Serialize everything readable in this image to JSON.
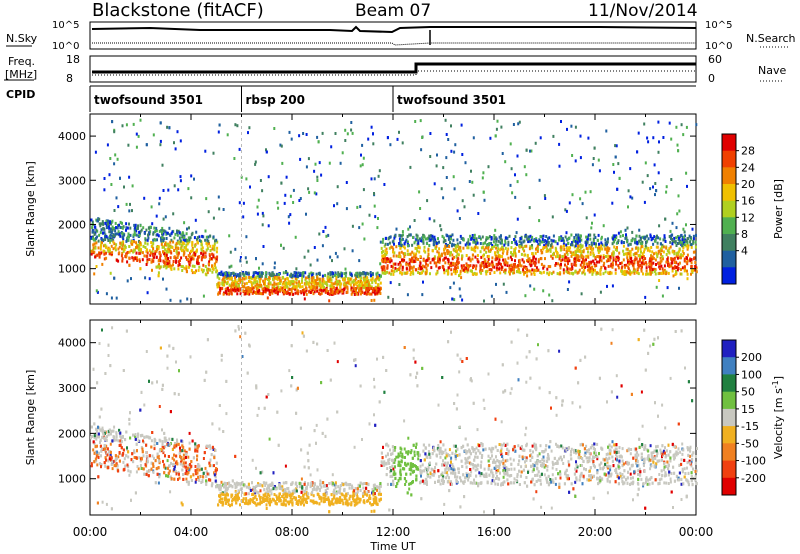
{
  "header": {
    "station": "Blackstone (fitACF)",
    "beam": "Beam 07",
    "date": "11/Nov/2014"
  },
  "panels": {
    "nsky_label": "N.Sky",
    "nsearch_label": "N.Search",
    "freq_label_line1": "Freq.",
    "freq_label_line2": "[MHz]",
    "nave_label": "Nave",
    "cpid_label": "CPID",
    "noise_ticks": [
      "10^5",
      "10^0"
    ],
    "freq_ticks": [
      "18",
      "8"
    ],
    "nave_ticks": [
      "60",
      "0"
    ]
  },
  "cpid_segments": [
    {
      "label": "twofsound 3501",
      "start_h": 0
    },
    {
      "label": "rbsp 200",
      "start_h": 6
    },
    {
      "label": "twofsound 3501",
      "start_h": 12
    }
  ],
  "chart_data": [
    {
      "type": "heatmap",
      "title": "",
      "xlabel": "Time UT",
      "ylabel": "Slant Range [km]",
      "x_ticks": [
        "00:00",
        "04:00",
        "08:00",
        "12:00",
        "16:00",
        "20:00",
        "00:00"
      ],
      "xlim_hours": [
        0,
        24
      ],
      "ylim": [
        200,
        4500
      ],
      "y_ticks": [
        1000,
        2000,
        3000,
        4000
      ],
      "colorbar": {
        "label": "Power [dB]",
        "ticks": [
          "28",
          "24",
          "20",
          "16",
          "12",
          "8",
          "4"
        ],
        "colors": [
          "#e00000",
          "#f04000",
          "#f08000",
          "#f0c000",
          "#b0d020",
          "#50b050",
          "#408060",
          "#2060a0",
          "#0020e0"
        ]
      }
    },
    {
      "type": "heatmap",
      "title": "",
      "xlabel": "Time UT",
      "ylabel": "Slant Range [km]",
      "x_ticks": [
        "00:00",
        "04:00",
        "08:00",
        "12:00",
        "16:00",
        "20:00",
        "00:00"
      ],
      "xlim_hours": [
        0,
        24
      ],
      "ylim": [
        200,
        4500
      ],
      "y_ticks": [
        1000,
        2000,
        3000,
        4000
      ],
      "colorbar": {
        "label": "Velocity [m s",
        "label_sup": "-1",
        "ticks": [
          "200",
          "100",
          "50",
          "15",
          "-15",
          "-50",
          "-100",
          "-200"
        ],
        "colors": [
          "#2020c0",
          "#4080c0",
          "#208040",
          "#70c040",
          "#c8c8c0",
          "#f0b020",
          "#f08020",
          "#f04010",
          "#e00000"
        ]
      }
    }
  ]
}
